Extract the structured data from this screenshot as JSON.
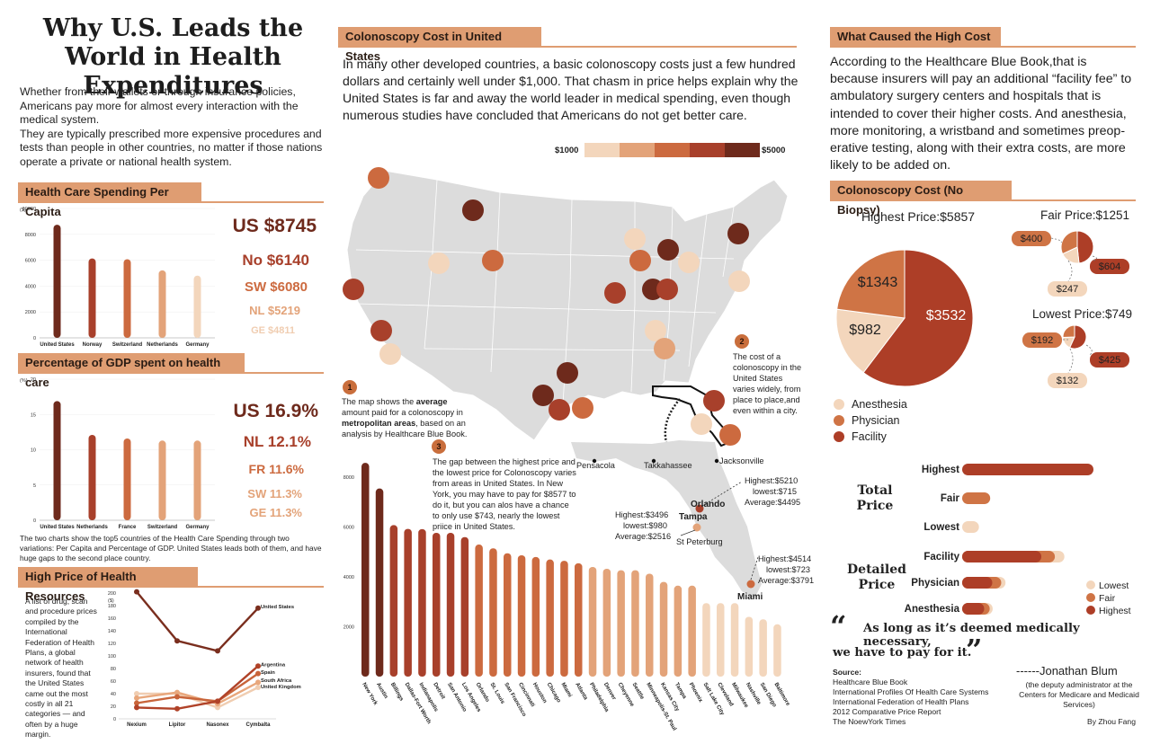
{
  "title": "Why U.S. Leads the World in Health Expenditures",
  "intro": [
    "Whether from their wallets or through insurance policies, Americans pay more for almost every interaction with the medical system.",
    "They are typically prescribed more expensive procedures and tests than people in other countries, no matter if those nations operate a private or national health system."
  ],
  "sections": {
    "per_capita": "Health Care Spending Per Capita",
    "gdp": "Percentage of GDP spent on health care",
    "resources": "High Price of Health Resources",
    "colonoscopy_us": "Colonoscopy Cost in United States",
    "cause": "What Caused the High Cost",
    "no_biopsy": "Colonoscopy Cost (No Biopsy)"
  },
  "per_capita_labels": [
    "US $8745",
    "No $6140",
    "SW $6080",
    "NL $5219",
    "GE $4811"
  ],
  "gdp_labels": [
    "US 16.9%",
    "NL 12.1%",
    "FR 11.6%",
    "SW 11.3%",
    "GE 11.3%"
  ],
  "two_charts_note": "The two charts show the top5 countries of the Health Care Spending through two variations: Per Capita and Percentage of GDP. United States leads both of them, and have huge  gaps to the second place country.",
  "resources_text": "A list of drug, scan and procedure prices compiled by the International Federation of Health Plans, a global network of health insurers, found that the United States came out the most costly in all 21 categories — and often by a huge margin.",
  "colonoscopy_paragraph": "In many other developed countries, a basic colonoscopy costs just a few hundred dollars and certainly well under $1,000. That chasm in price helps explain why the United States is far and away the world leader in medical spending, even though numerous studies have concluded that Americans do not get better care.",
  "legend_scale": {
    "low": "$1000",
    "high": "$5000",
    "colors": [
      "#f3d6bc",
      "#e3a379",
      "#cc6a3f",
      "#a8402b",
      "#6e2a1c"
    ]
  },
  "callouts": {
    "c1_num": "1",
    "c1_pre": "The map shows the ",
    "c1_b1": "average",
    "c1_mid": " amount paid for a colonoscopy in ",
    "c1_b2": "metropolitan areas",
    "c1_post": ", based on an analysis by Healthcare Blue Book.",
    "c2_num": "2",
    "c2": "The cost of a colonoscopy in the United States varies widely, from place to place,and even within a city.",
    "c3_num": "3",
    "c3": "The  gap between the highest price and the lowest price for Colonoscopy varies from areas in United States. In New York, you may have to pay for $8577 to do it, but you can alos have a chance to only use $743, nearly the lowest priice in United States."
  },
  "florida": {
    "cities": [
      "Pensacola",
      "Takkahassee",
      "Jacksonville",
      "Orlando",
      "Tampa",
      "St Peterburg",
      "Miami"
    ],
    "orlando": [
      "Highest:$5210",
      "lowest:$715",
      "Average:$4495"
    ],
    "tampa": [
      "Highest:$3496",
      "lowest:$980",
      "Average:$2516"
    ],
    "miami": [
      "Highest:$4514",
      "lowest:$723",
      "Average:$3791"
    ]
  },
  "cause_text": "According to the Healthcare Blue Book,that is because insurers will pay an additional “facility fee” to ambulatory surgery centers and hospitals that is intended to cover their higher costs. And anesthesia, more monitoring, a wristband and sometimes preop-erative testing, along with their extra costs, are more likely to be added on.",
  "pies": {
    "highest_title": "Highest Price:$5857",
    "fair_title": "Fair Price:$1251",
    "lowest_title": "Lowest Price:$749",
    "highest_values": [
      "$1343",
      "$982",
      "$3532"
    ],
    "fair_values": [
      "$400",
      "$604",
      "$247"
    ],
    "lowest_values": [
      "$192",
      "$425",
      "$132"
    ],
    "legend": [
      "Anesthesia",
      "Physician",
      "Facility"
    ],
    "colors": {
      "anesthesia": "#f3d6bc",
      "physician": "#cf7445",
      "facility": "#ad3e27"
    }
  },
  "bottom_right": {
    "total_price": "Total Price",
    "detailed_price": "Detailed Price",
    "rows": [
      "Highest",
      "Fair",
      "Lowest",
      "Facility",
      "Physician",
      "Anesthesia"
    ],
    "legend": [
      "Lowest",
      "Fair",
      "Highest"
    ]
  },
  "quote": {
    "open": "“",
    "line1": "As long as it’s deemed medically necessary,",
    "line2": "we have to pay for it.",
    "close": "”",
    "author": "------Jonathan Blum",
    "role": "(the deputy administrator at the Centers for Medicare and Medicaid Services)"
  },
  "source": {
    "label": "Source:",
    "items": [
      "Healthcare Blue Book",
      "International Profiles Of Health Care Systems",
      "International Federation of Health Plans",
      "2012 Comparative Price Report",
      "The NoewYork Times"
    ],
    "byline": "By Zhou Fang"
  },
  "chart_data": [
    {
      "type": "bar",
      "title": "Health Care Spending Per Capita",
      "categories": [
        "United States",
        "Norway",
        "Switzerland",
        "Netherlands",
        "Germany"
      ],
      "values": [
        8745,
        6140,
        6080,
        5219,
        4811
      ],
      "ylabel": "($)",
      "ylim": [
        0,
        10000
      ],
      "yticks": [
        0,
        2000,
        4000,
        6000,
        8000,
        10000
      ],
      "colors": [
        "#6e2a1c",
        "#a8402b",
        "#cc6a3f",
        "#e3a379",
        "#f3d6bc"
      ]
    },
    {
      "type": "bar",
      "title": "Percentage of GDP spent on health care",
      "categories": [
        "United States",
        "Netherlands",
        "France",
        "Switzerland",
        "Germany"
      ],
      "values": [
        16.9,
        12.1,
        11.6,
        11.3,
        11.3
      ],
      "ylabel": "(%)",
      "ylim": [
        0,
        20
      ],
      "yticks": [
        0,
        5,
        10,
        15,
        20
      ],
      "colors": [
        "#6e2a1c",
        "#a8402b",
        "#cc6a3f",
        "#e3a379",
        "#e3a379"
      ]
    },
    {
      "type": "line",
      "title": "High Price of Health Resources",
      "categories": [
        "Nexium",
        "Lipitor",
        "Nasonex",
        "Cymbalta"
      ],
      "ylabel": "($)",
      "ylim": [
        0,
        200
      ],
      "yticks": [
        0,
        20,
        40,
        60,
        80,
        100,
        120,
        140,
        160,
        180,
        200
      ],
      "series": [
        {
          "name": "United States",
          "values": [
            202,
            124,
            108,
            176
          ],
          "color": "#7a2e1e"
        },
        {
          "name": "Argentina",
          "values": [
            18,
            16,
            28,
            84
          ],
          "color": "#b04228"
        },
        {
          "name": "Spain",
          "values": [
            25,
            35,
            28,
            72
          ],
          "color": "#c8643a"
        },
        {
          "name": "South Africa",
          "values": [
            33,
            42,
            24,
            58
          ],
          "color": "#e8a77c"
        },
        {
          "name": "United Kingdom",
          "values": [
            40,
            40,
            18,
            50
          ],
          "color": "#f0cdb1"
        }
      ]
    },
    {
      "type": "bar",
      "title": "Colonoscopy Cost in United States",
      "categories": [
        "New York",
        "Austin",
        "Billings",
        "Dallas-Fort Worth",
        "Indianapolis",
        "Detroit",
        "San Antonio",
        "Los Angeles",
        "Orlando",
        "St. Louis",
        "San Francisco",
        "Cincinnati",
        "Houston",
        "Chicago",
        "Miami",
        "Atlanta",
        "Philadelphia",
        "Denver",
        "Cheyenne",
        "Seattle",
        "Minneapolis-St. Paul",
        "Kansas City",
        "Tampa",
        "Phoenix",
        "Salt Lake City",
        "Cleveland",
        "Milwaukee",
        "Nashville",
        "San Diego",
        "Baltimore"
      ],
      "values": [
        8577,
        7550,
        6080,
        5930,
        5920,
        5770,
        5770,
        5600,
        5300,
        5150,
        4950,
        4870,
        4800,
        4700,
        4650,
        4550,
        4400,
        4330,
        4270,
        4270,
        4130,
        3800,
        3650,
        3650,
        2950,
        2950,
        2950,
        2400,
        2300,
        2100
      ],
      "ylim": [
        0,
        8800
      ],
      "yticks": [
        2000,
        4000,
        6000,
        8000
      ]
    },
    {
      "type": "bar",
      "title": "Total Price",
      "categories": [
        "Highest",
        "Fair",
        "Lowest"
      ],
      "values": [
        5857,
        1251,
        749
      ]
    },
    {
      "type": "bar",
      "title": "Detailed Price",
      "categories": [
        "Facility",
        "Physician",
        "Anesthesia"
      ],
      "series": [
        {
          "name": "Lowest",
          "values": [
            425,
            192,
            132
          ]
        },
        {
          "name": "Fair",
          "values": [
            604,
            400,
            247
          ]
        },
        {
          "name": "Highest",
          "values": [
            3532,
            1343,
            982
          ]
        }
      ]
    }
  ]
}
